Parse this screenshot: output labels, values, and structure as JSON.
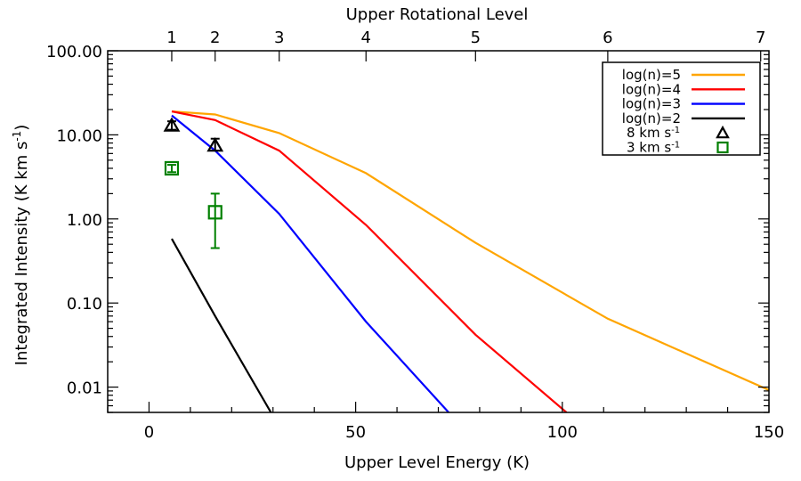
{
  "chart_data": {
    "type": "line",
    "xlabel": "Upper Level Energy (K)",
    "ylabel": "Integrated Intensity (K km s",
    "ylabel_sup": "-1",
    "ylabel_close": ")",
    "x2label": "Upper Rotational Level",
    "xlim": [
      -10,
      150
    ],
    "ylim": [
      0.005,
      100
    ],
    "yscale": "log",
    "x_ticks": [
      0,
      50,
      100,
      150
    ],
    "x_tick_labels": [
      "0",
      "50",
      "100",
      "150"
    ],
    "y_ticks": [
      0.01,
      0.1,
      1,
      10,
      100
    ],
    "y_tick_labels": [
      "0.01",
      "0.10",
      "1.00",
      "10.00",
      "100.00"
    ],
    "top_ticks": [
      {
        "x": 5.5,
        "label": "1"
      },
      {
        "x": 16.0,
        "label": "2"
      },
      {
        "x": 31.5,
        "label": "3"
      },
      {
        "x": 52.5,
        "label": "4"
      },
      {
        "x": 79.0,
        "label": "5"
      },
      {
        "x": 111.0,
        "label": "6"
      },
      {
        "x": 148.0,
        "label": "7"
      }
    ],
    "series": [
      {
        "name": "log(n)=5",
        "color": "#ffa500",
        "x": [
          5.5,
          16.0,
          31.5,
          52.5,
          79.0,
          111.0,
          150.0
        ],
        "y": [
          19.0,
          17.5,
          10.5,
          3.5,
          0.52,
          0.065,
          0.0092
        ]
      },
      {
        "name": "log(n)=4",
        "color": "#ff0000",
        "x": [
          5.5,
          16.0,
          31.5,
          52.5,
          79.0,
          101.0
        ],
        "y": [
          19.0,
          15.0,
          6.5,
          0.85,
          0.042,
          0.005
        ]
      },
      {
        "name": "log(n)=3",
        "color": "#0000ff",
        "x": [
          5.5,
          16.0,
          31.5,
          52.5,
          72.5
        ],
        "y": [
          17.0,
          6.5,
          1.15,
          0.06,
          0.005
        ]
      },
      {
        "name": "log(n)=2",
        "color": "#000000",
        "x": [
          5.5,
          16.0,
          29.5
        ],
        "y": [
          0.58,
          0.07,
          0.005
        ]
      }
    ],
    "observations": [
      {
        "label_main": "8 km s",
        "label_sup": "-1",
        "marker": "triangle",
        "color": "#000000",
        "points": [
          {
            "x": 5.5,
            "y": 13.0,
            "ylo": 11.5,
            "yhi": 14.5
          },
          {
            "x": 16.0,
            "y": 7.5,
            "ylo": 6.5,
            "yhi": 9.0
          }
        ]
      },
      {
        "label_main": "3 km s",
        "label_sup": "-1",
        "marker": "square",
        "color": "#008000",
        "points": [
          {
            "x": 5.5,
            "y": 4.0,
            "ylo": 3.6,
            "yhi": 4.4
          },
          {
            "x": 16.0,
            "y": 1.2,
            "ylo": 0.45,
            "yhi": 2.0
          }
        ]
      }
    ]
  }
}
